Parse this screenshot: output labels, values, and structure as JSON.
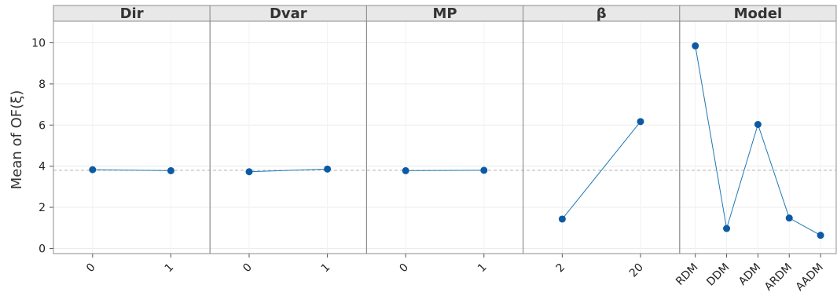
{
  "chart_data": {
    "type": "line",
    "ylabel": "Mean of OF(ξ)",
    "ylim": [
      -0.25,
      11.05
    ],
    "yticks": [
      0,
      2,
      4,
      6,
      8,
      10
    ],
    "grid": true,
    "reference_line": 3.8,
    "colors": {
      "line": "#1f77b4",
      "marker": "#0b5aa3",
      "reference": "#b0b0b0",
      "strip": "#e8e8e8",
      "border": "#8c8c8c"
    },
    "panels": [
      {
        "factor": "Dir",
        "categories": [
          "0",
          "1"
        ],
        "values": [
          3.83,
          3.78
        ]
      },
      {
        "factor": "Dvar",
        "categories": [
          "0",
          "1"
        ],
        "values": [
          3.73,
          3.86
        ]
      },
      {
        "factor": "MP",
        "categories": [
          "0",
          "1"
        ],
        "values": [
          3.78,
          3.8
        ]
      },
      {
        "factor": "β",
        "categories": [
          "2",
          "20"
        ],
        "values": [
          1.43,
          6.17
        ]
      },
      {
        "factor": "Model",
        "categories": [
          "RDM",
          "DDM",
          "ADM",
          "ARDM",
          "AADM"
        ],
        "values": [
          9.85,
          0.97,
          6.03,
          1.48,
          0.64
        ]
      }
    ]
  }
}
